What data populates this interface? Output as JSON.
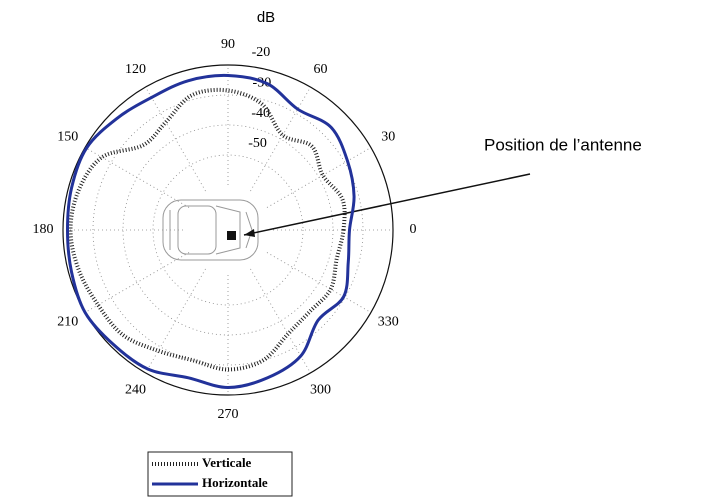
{
  "chart_data": {
    "type": "polar",
    "radial_label": "dB",
    "theta": [
      0,
      15,
      30,
      45,
      60,
      75,
      90,
      105,
      120,
      135,
      150,
      165,
      180,
      195,
      210,
      225,
      240,
      255,
      270,
      285,
      300,
      315,
      330,
      345
    ],
    "thetaticks": [
      0,
      30,
      60,
      90,
      120,
      150,
      180,
      210,
      240,
      270,
      300,
      330
    ],
    "rlim": [
      -75,
      -20
    ],
    "rticks": [
      -20,
      -30,
      -40,
      -50
    ],
    "grid": true,
    "series": [
      {
        "name": "Verticale",
        "color": "#222222",
        "line_style": "dotted",
        "values": [
          -36.5,
          -35.5,
          -38.5,
          -35.5,
          -38.5,
          -31.5,
          -28.5,
          -28.5,
          -33.5,
          -35,
          -26.5,
          -23.5,
          -22.5,
          -23.5,
          -25,
          -25.5,
          -28.5,
          -30,
          -28.5,
          -30,
          -35,
          -36.5,
          -35.5,
          -37.5
        ]
      },
      {
        "name": "Horizontale",
        "color": "#22329a",
        "line_style": "solid",
        "values": [
          -34.5,
          -31.5,
          -29,
          -26.5,
          -28.5,
          -24.5,
          -23.5,
          -23.5,
          -24,
          -22.5,
          -20.5,
          -21,
          -21.5,
          -21,
          -20,
          -21,
          -21.5,
          -24,
          -22.5,
          -24,
          -26.5,
          -32.5,
          -30.5,
          -33.5
        ]
      }
    ],
    "annotation": "Position de l’antenne"
  }
}
